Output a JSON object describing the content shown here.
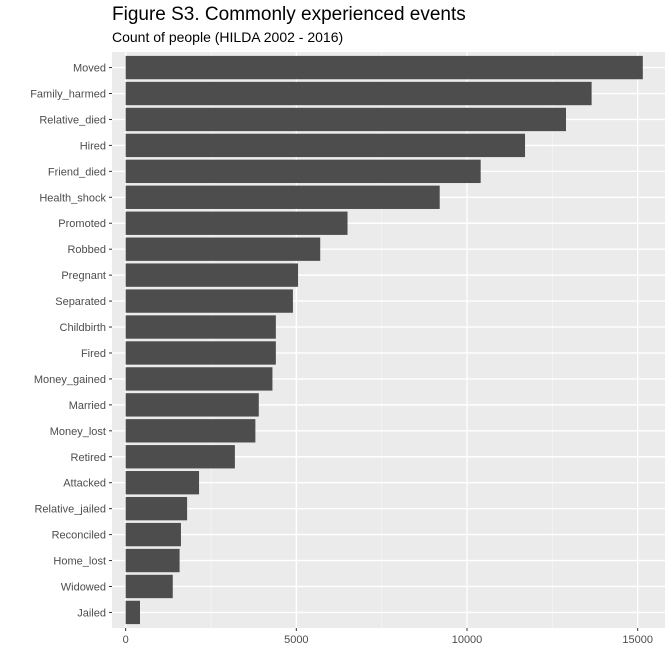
{
  "chart_data": {
    "type": "bar",
    "orientation": "horizontal",
    "title": "Figure S3. Commonly experienced events",
    "subtitle": "Count of people (HILDA 2002 - 2016)",
    "xlabel": "",
    "ylabel": "",
    "categories": [
      "Moved",
      "Family_harmed",
      "Relative_died",
      "Hired",
      "Friend_died",
      "Health_shock",
      "Promoted",
      "Robbed",
      "Pregnant",
      "Separated",
      "Childbirth",
      "Fired",
      "Money_gained",
      "Married",
      "Money_lost",
      "Retired",
      "Attacked",
      "Relative_jailed",
      "Reconciled",
      "Home_lost",
      "Widowed",
      "Jailed"
    ],
    "values": [
      15150,
      13650,
      12900,
      11700,
      10400,
      9200,
      6500,
      5700,
      5050,
      4900,
      4400,
      4400,
      4300,
      3900,
      3800,
      3200,
      2150,
      1800,
      1620,
      1580,
      1380,
      420
    ],
    "xlim": [
      -400,
      15800
    ],
    "xticks": [
      0,
      5000,
      10000,
      15000
    ],
    "grid": true,
    "legend": "none",
    "colors": {
      "bar": "#4d4d4d",
      "panel": "#ebebeb",
      "grid_major": "#ffffff",
      "grid_minor": "#f5f5f5",
      "tick_text": "#4d4d4d",
      "tick": "#333333"
    }
  }
}
